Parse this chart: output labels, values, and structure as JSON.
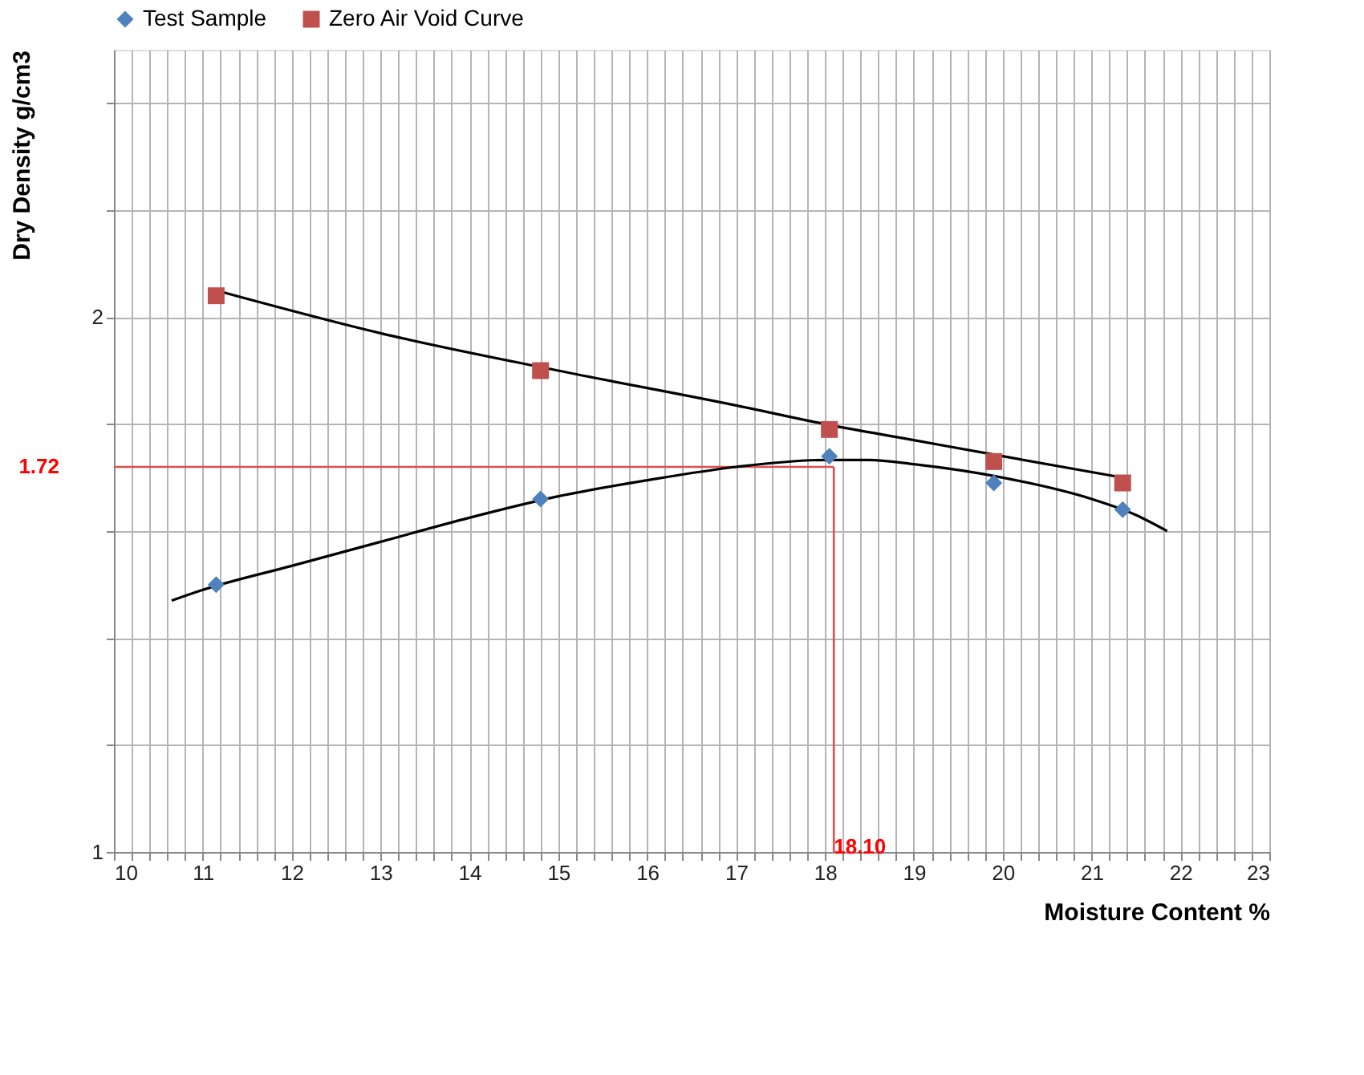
{
  "chart_data": {
    "type": "scatter",
    "xlabel": "Moisture Content %",
    "ylabel": "Dry Density g/cm3",
    "xlim": [
      10,
      23
    ],
    "ylim": [
      1,
      2.5
    ],
    "xticks": [
      10,
      {
        "value": 10.2,
        "label": null
      },
      {
        "value": 10.4,
        "label": null
      },
      {
        "value": 10.6,
        "label": null
      },
      {
        "value": 10.8,
        "label": null
      },
      11,
      {
        "value": 11.2,
        "label": null
      },
      {
        "value": 11.4,
        "label": null
      },
      {
        "value": 11.6,
        "label": null
      },
      {
        "value": 11.8,
        "label": null
      },
      12,
      {
        "value": 12.2,
        "label": null
      },
      {
        "value": 12.4,
        "label": null
      },
      {
        "value": 12.6,
        "label": null
      },
      {
        "value": 12.8,
        "label": null
      },
      13,
      {
        "value": 13.2,
        "label": null
      },
      {
        "value": 13.4,
        "label": null
      },
      {
        "value": 13.6,
        "label": null
      },
      {
        "value": 13.8,
        "label": null
      },
      14,
      {
        "value": 14.2,
        "label": null
      },
      {
        "value": 14.4,
        "label": null
      },
      {
        "value": 14.6,
        "label": null
      },
      {
        "value": 14.8,
        "label": null
      },
      15,
      {
        "value": 15.2,
        "label": null
      },
      {
        "value": 15.4,
        "label": null
      },
      {
        "value": 15.6,
        "label": null
      },
      {
        "value": 15.8,
        "label": null
      },
      16,
      {
        "value": 16.2,
        "label": null
      },
      {
        "value": 16.4,
        "label": null
      },
      {
        "value": 16.6,
        "label": null
      },
      {
        "value": 16.8,
        "label": null
      },
      17,
      {
        "value": 17.2,
        "label": null
      },
      {
        "value": 17.4,
        "label": null
      },
      {
        "value": 17.6,
        "label": null
      },
      {
        "value": 17.8,
        "label": null
      },
      18,
      {
        "value": 18.2,
        "label": null
      },
      {
        "value": 18.4,
        "label": null
      },
      {
        "value": 18.6,
        "label": null
      },
      {
        "value": 18.8,
        "label": null
      },
      19,
      {
        "value": 19.2,
        "label": null
      },
      {
        "value": 19.4,
        "label": null
      },
      {
        "value": 19.6,
        "label": null
      },
      {
        "value": 19.8,
        "label": null
      },
      20,
      {
        "value": 20.2,
        "label": null
      },
      {
        "value": 20.4,
        "label": null
      },
      {
        "value": 20.6,
        "label": null
      },
      {
        "value": 20.8,
        "label": null
      },
      21,
      {
        "value": 21.2,
        "label": null
      },
      {
        "value": 21.4,
        "label": null
      },
      {
        "value": 21.6,
        "label": null
      },
      {
        "value": 21.8,
        "label": null
      },
      22,
      {
        "value": 22.2,
        "label": null
      },
      {
        "value": 22.4,
        "label": null
      },
      {
        "value": 22.6,
        "label": null
      },
      {
        "value": 22.8,
        "label": null
      },
      23
    ],
    "yticks": [
      1,
      {
        "value": 1.2,
        "label": null
      },
      {
        "value": 1.4,
        "label": null
      },
      {
        "value": 1.6,
        "label": null
      },
      {
        "value": 1.8,
        "label": null
      },
      2,
      {
        "value": 2.2,
        "label": null
      },
      {
        "value": 2.4,
        "label": null
      }
    ],
    "grid": true,
    "legend": "top",
    "series": [
      {
        "name": "Test Sample",
        "marker": "diamond",
        "color": "#4f81bd",
        "x": [
          11.15,
          14.8,
          18.05,
          19.9,
          21.35
        ],
        "values": [
          1.5,
          1.66,
          1.74,
          1.69,
          1.64
        ]
      },
      {
        "name": "Zero Air Void Curve",
        "marker": "square",
        "color": "#c0504d",
        "x": [
          11.15,
          14.8,
          18.05,
          19.9,
          21.35
        ],
        "values": [
          2.04,
          1.9,
          1.79,
          1.73,
          1.69
        ]
      },
      {
        "type": "line",
        "marker": "none",
        "color": "#000000",
        "x": [
          10.65,
          11,
          12,
          13,
          14,
          15,
          16,
          17,
          18,
          18.5,
          19,
          20,
          21,
          21.5,
          21.85
        ],
        "values": [
          1.47,
          1.49,
          1.535,
          1.58,
          1.625,
          1.665,
          1.695,
          1.72,
          1.733,
          1.733,
          1.725,
          1.7,
          1.66,
          1.63,
          1.6
        ]
      },
      {
        "type": "line",
        "marker": "none",
        "color": "#000000",
        "x": [
          11.15,
          13,
          15,
          17,
          18,
          19,
          20,
          21.35
        ],
        "values": [
          2.05,
          1.97,
          1.9,
          1.835,
          1.8,
          1.77,
          1.74,
          1.7
        ]
      }
    ],
    "ref_lines": [
      {
        "axis": "y",
        "value": 1.72,
        "label": "1.72",
        "color": "#e05050"
      },
      {
        "axis": "x",
        "value": 18.1,
        "label": "18.10",
        "color": "#e05050"
      }
    ]
  }
}
